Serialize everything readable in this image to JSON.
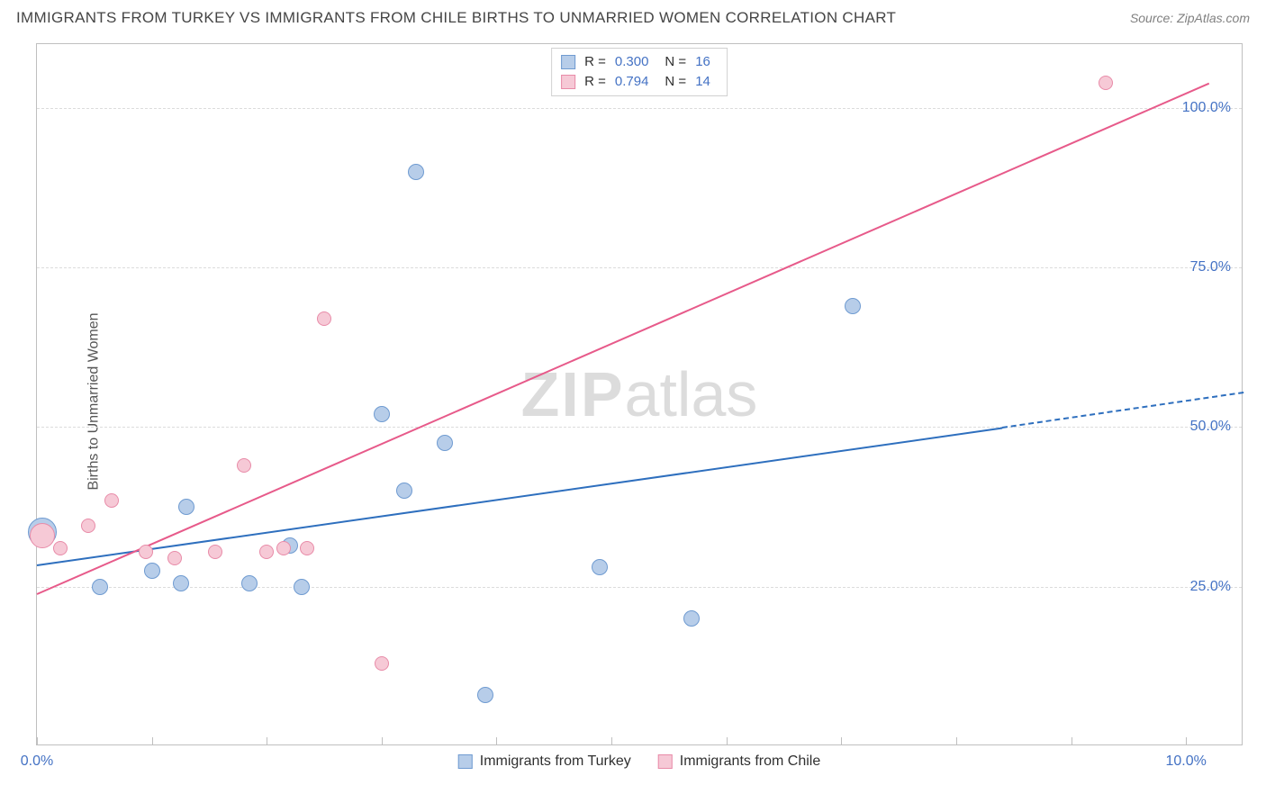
{
  "header": {
    "title": "IMMIGRANTS FROM TURKEY VS IMMIGRANTS FROM CHILE BIRTHS TO UNMARRIED WOMEN CORRELATION CHART",
    "source": "Source: ZipAtlas.com"
  },
  "watermark": {
    "part1": "ZIP",
    "part2": "atlas"
  },
  "chart": {
    "type": "scatter",
    "xlim": [
      0,
      10.5
    ],
    "ylim": [
      0,
      110
    ],
    "background_color": "#ffffff",
    "grid_color": "#dcdcdc",
    "border_color": "#bfbfbf",
    "y_axis": {
      "label": "Births to Unmarried Women",
      "ticks": [
        {
          "value": 25,
          "label": "25.0%"
        },
        {
          "value": 50,
          "label": "50.0%"
        },
        {
          "value": 75,
          "label": "75.0%"
        },
        {
          "value": 100,
          "label": "100.0%"
        }
      ],
      "tick_color": "#4472c4",
      "label_fontsize": 16
    },
    "x_axis": {
      "tick_positions": [
        0,
        1,
        2,
        3,
        4,
        5,
        6,
        7,
        8,
        9,
        10
      ],
      "tick_labels": [
        {
          "value": 0,
          "label": "0.0%"
        },
        {
          "value": 10,
          "label": "10.0%"
        }
      ],
      "tick_color": "#4472c4"
    },
    "series": [
      {
        "key": "turkey",
        "name": "Immigrants from Turkey",
        "point_fill": "#b7cde9",
        "point_stroke": "#6f9bd1",
        "trend_color": "#2e6fbe",
        "R": "0.300",
        "N": "16",
        "points": [
          {
            "x": 0.05,
            "y": 33.5,
            "r": 16
          },
          {
            "x": 0.55,
            "y": 25.0,
            "r": 9
          },
          {
            "x": 1.0,
            "y": 27.5,
            "r": 9
          },
          {
            "x": 1.25,
            "y": 25.5,
            "r": 9
          },
          {
            "x": 1.3,
            "y": 37.5,
            "r": 9
          },
          {
            "x": 1.85,
            "y": 25.5,
            "r": 9
          },
          {
            "x": 2.2,
            "y": 31.5,
            "r": 9
          },
          {
            "x": 2.3,
            "y": 25.0,
            "r": 9
          },
          {
            "x": 3.0,
            "y": 52.0,
            "r": 9
          },
          {
            "x": 3.2,
            "y": 40.0,
            "r": 9
          },
          {
            "x": 3.3,
            "y": 90.0,
            "r": 9
          },
          {
            "x": 3.55,
            "y": 47.5,
            "r": 9
          },
          {
            "x": 3.9,
            "y": 8.0,
            "r": 9
          },
          {
            "x": 4.9,
            "y": 28.0,
            "r": 9
          },
          {
            "x": 5.7,
            "y": 20.0,
            "r": 9
          },
          {
            "x": 7.1,
            "y": 69.0,
            "r": 9
          }
        ],
        "trend": {
          "x1": 0,
          "y1": 28.5,
          "x2": 8.4,
          "y2": 50.0,
          "x2_dash": 10.5,
          "y2_dash": 55.5
        }
      },
      {
        "key": "chile",
        "name": "Immigrants from Chile",
        "point_fill": "#f6c9d6",
        "point_stroke": "#e88ba8",
        "trend_color": "#e75a8a",
        "R": "0.794",
        "N": "14",
        "points": [
          {
            "x": 0.05,
            "y": 33.0,
            "r": 14
          },
          {
            "x": 0.2,
            "y": 31.0,
            "r": 8
          },
          {
            "x": 0.45,
            "y": 34.5,
            "r": 8
          },
          {
            "x": 0.65,
            "y": 38.5,
            "r": 8
          },
          {
            "x": 0.95,
            "y": 30.5,
            "r": 8
          },
          {
            "x": 1.2,
            "y": 29.5,
            "r": 8
          },
          {
            "x": 1.55,
            "y": 30.5,
            "r": 8
          },
          {
            "x": 1.8,
            "y": 44.0,
            "r": 8
          },
          {
            "x": 2.0,
            "y": 30.5,
            "r": 8
          },
          {
            "x": 2.15,
            "y": 31.0,
            "r": 8
          },
          {
            "x": 2.35,
            "y": 31.0,
            "r": 8
          },
          {
            "x": 2.5,
            "y": 67.0,
            "r": 8
          },
          {
            "x": 3.0,
            "y": 13.0,
            "r": 8
          },
          {
            "x": 9.3,
            "y": 104.0,
            "r": 8
          }
        ],
        "trend": {
          "x1": 0,
          "y1": 24.0,
          "x2": 10.2,
          "y2": 104.0
        }
      }
    ],
    "stats_box": {
      "rows": [
        {
          "series": "turkey",
          "R_label": "R =",
          "N_label": "N ="
        },
        {
          "series": "chile",
          "R_label": "R =",
          "N_label": "N ="
        }
      ]
    }
  }
}
